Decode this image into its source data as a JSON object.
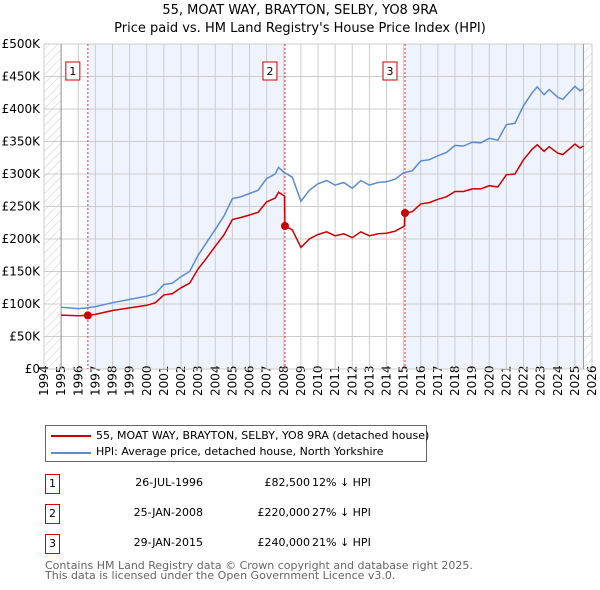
{
  "title": "55, MOAT WAY, BRAYTON, SELBY, YO8 9RA",
  "subtitle": "Price paid vs. HM Land Registry's House Price Index (HPI)",
  "chart_data": {
    "type": "line",
    "xlim": [
      1994,
      2026
    ],
    "ylim": [
      0,
      500000
    ],
    "yticks": [
      0,
      50000,
      100000,
      150000,
      200000,
      250000,
      300000,
      350000,
      400000,
      450000,
      500000
    ],
    "ytick_labels": [
      "£0",
      "£50K",
      "£100K",
      "£150K",
      "£200K",
      "£250K",
      "£300K",
      "£350K",
      "£400K",
      "£450K",
      "£500K"
    ],
    "xticks": [
      1994,
      1995,
      1996,
      1997,
      1998,
      1999,
      2000,
      2001,
      2002,
      2003,
      2004,
      2005,
      2006,
      2007,
      2008,
      2009,
      2010,
      2011,
      2012,
      2013,
      2014,
      2015,
      2016,
      2017,
      2018,
      2019,
      2020,
      2021,
      2022,
      2023,
      2024,
      2025,
      2026
    ],
    "grid": true,
    "data_range": [
      1995,
      2025.5
    ],
    "series": [
      {
        "name": "55, MOAT WAY, BRAYTON, SELBY, YO8 9RA (detached house)",
        "color": "#cc0000",
        "x": [
          1995,
          1996,
          1996.56,
          1997,
          1998,
          1999,
          2000,
          2000.5,
          2001,
          2001.5,
          2002,
          2002.5,
          2003,
          2003.5,
          2004,
          2004.5,
          2005,
          2005.5,
          2006,
          2006.5,
          2007,
          2007.5,
          2007.7,
          2008.05,
          2008.07,
          2008.5,
          2009,
          2009.5,
          2010,
          2010.5,
          2011,
          2011.5,
          2012,
          2012.5,
          2013,
          2013.5,
          2014,
          2014.5,
          2015.05,
          2015.08,
          2015.5,
          2016,
          2016.5,
          2017,
          2017.5,
          2018,
          2018.5,
          2019,
          2019.5,
          2020,
          2020.5,
          2021,
          2021.5,
          2022,
          2022.5,
          2022.8,
          2023.2,
          2023.5,
          2024,
          2024.3,
          2025,
          2025.3,
          2025.5
        ],
        "y": [
          83,
          82,
          82.5,
          84,
          90,
          94,
          98,
          102,
          114,
          116,
          125,
          132,
          154,
          171,
          189,
          206,
          230,
          233,
          237,
          241,
          257,
          263,
          272,
          266,
          220,
          214,
          187,
          200,
          207,
          211,
          205,
          208,
          202,
          211,
          205,
          208,
          209,
          212,
          220,
          240,
          242,
          254,
          256,
          261,
          265,
          273,
          273,
          277,
          277,
          282,
          280,
          299,
          300,
          322,
          338,
          345,
          335,
          342,
          332,
          330,
          346,
          340,
          343
        ]
      },
      {
        "name": "HPI: Average price, detached house, North Yorkshire",
        "color": "#5b8ccf",
        "x": [
          1995,
          1996,
          1996.5,
          1997,
          1998,
          1999,
          2000,
          2000.5,
          2001,
          2001.5,
          2002,
          2002.5,
          2003,
          2003.5,
          2004,
          2004.5,
          2005,
          2005.5,
          2006,
          2006.5,
          2007,
          2007.5,
          2007.7,
          2008,
          2008.5,
          2009,
          2009.5,
          2010,
          2010.5,
          2011,
          2011.5,
          2012,
          2012.5,
          2013,
          2013.5,
          2014,
          2014.5,
          2015,
          2015.5,
          2016,
          2016.5,
          2017,
          2017.5,
          2018,
          2018.5,
          2019,
          2019.5,
          2020,
          2020.5,
          2021,
          2021.5,
          2022,
          2022.5,
          2022.8,
          2023.2,
          2023.5,
          2024,
          2024.3,
          2025,
          2025.3,
          2025.5
        ],
        "y": [
          95,
          93,
          94,
          96,
          102,
          107,
          112,
          116,
          130,
          132,
          142,
          150,
          175,
          195,
          215,
          235,
          262,
          265,
          270,
          275,
          293,
          300,
          310,
          303,
          295,
          258,
          275,
          285,
          290,
          283,
          287,
          278,
          290,
          283,
          287,
          288,
          292,
          302,
          305,
          320,
          322,
          328,
          333,
          344,
          343,
          349,
          348,
          355,
          352,
          376,
          378,
          405,
          425,
          434,
          422,
          430,
          418,
          415,
          435,
          428,
          431
        ]
      }
    ],
    "y_units": "thousand GBP",
    "sales": [
      {
        "label": "1",
        "x": 1996.56,
        "y": 82.5
      },
      {
        "label": "2",
        "x": 2008.07,
        "y": 220
      },
      {
        "label": "3",
        "x": 2015.08,
        "y": 240
      }
    ],
    "shaded_ranges": [
      [
        1996.56,
        2008.07
      ],
      [
        2015.08,
        2025.5
      ]
    ],
    "legend_position": "bottom"
  },
  "legend": [
    {
      "label": "55, MOAT WAY, BRAYTON, SELBY, YO8 9RA (detached house)",
      "color": "#cc0000"
    },
    {
      "label": "HPI: Average price, detached house, North Yorkshire",
      "color": "#5b8ccf"
    }
  ],
  "transactions": [
    {
      "num": "1",
      "date": "26-JUL-1996",
      "price": "£82,500",
      "hpi": "12% ↓ HPI"
    },
    {
      "num": "2",
      "date": "25-JAN-2008",
      "price": "£220,000",
      "hpi": "27% ↓ HPI"
    },
    {
      "num": "3",
      "date": "29-JAN-2015",
      "price": "£240,000",
      "hpi": "21% ↓ HPI"
    }
  ],
  "footer": {
    "line1": "Contains HM Land Registry data © Crown copyright and database right 2025.",
    "line2": "This data is licensed under the Open Government Licence v3.0."
  }
}
